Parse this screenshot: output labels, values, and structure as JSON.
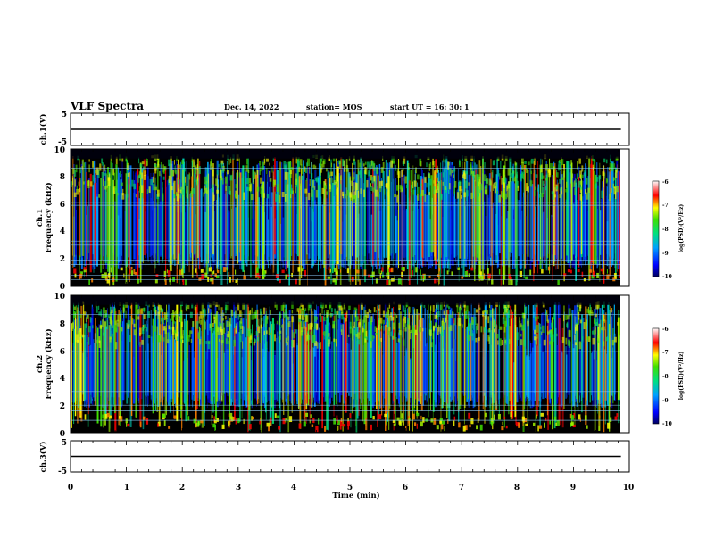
{
  "header": {
    "title": "VLF Spectra",
    "date": "Dec. 14, 2022",
    "station": "station= MOS",
    "start_ut": "start  UT  =   16: 30: 1"
  },
  "colors": {
    "bg": "#000000",
    "line": "#000000",
    "harmonic": "#8fd0ff"
  },
  "chart_data": [
    {
      "type": "line",
      "id": "ch1-waveform",
      "ylabel": "ch.1(V)",
      "ylim": [
        -5,
        5
      ],
      "yticks": [
        "5",
        "-5"
      ],
      "x": [
        0,
        9.85
      ],
      "values": [
        0,
        0
      ]
    },
    {
      "type": "heatmap",
      "id": "ch1-spectrogram",
      "ylabel": "ch.1\nFrequency (kHz)",
      "ylabel_lines": [
        "ch.1",
        "Frequency (kHz)"
      ],
      "ylim": [
        0,
        10
      ],
      "yticks": [
        "0",
        "2",
        "4",
        "6",
        "8",
        "10"
      ],
      "xlim": [
        0,
        10
      ],
      "data_end_min": 9.85,
      "colorbar": {
        "label": "log(PSD)(V²/Hz)",
        "range": [
          -10,
          -6
        ],
        "ticks": [
          "-6",
          "-7",
          "-8",
          "-9",
          "-10"
        ]
      }
    },
    {
      "type": "heatmap",
      "id": "ch2-spectrogram",
      "ylabel": "ch.2\nFrequency (kHz)",
      "ylabel_lines": [
        "ch.2",
        "Frequency (kHz)"
      ],
      "ylim": [
        0,
        10
      ],
      "yticks": [
        "0",
        "2",
        "4",
        "6",
        "8",
        "10"
      ],
      "xlim": [
        0,
        10
      ],
      "data_end_min": 9.85,
      "colorbar": {
        "label": "log(PSD)(V²/Hz)",
        "range": [
          -10,
          -6
        ],
        "ticks": [
          "-6",
          "-7",
          "-8",
          "-9",
          "-10"
        ]
      }
    },
    {
      "type": "line",
      "id": "ch3-waveform",
      "ylabel": "ch.3(V)",
      "ylim": [
        -5,
        5
      ],
      "yticks": [
        "5",
        "-5"
      ],
      "x": [
        0,
        9.85
      ],
      "values": [
        0,
        0
      ]
    }
  ],
  "xaxis": {
    "label": "Time  (min)",
    "ticks": [
      "0",
      "1",
      "2",
      "3",
      "4",
      "5",
      "6",
      "7",
      "8",
      "9",
      "10"
    ],
    "range": [
      0,
      10
    ]
  }
}
